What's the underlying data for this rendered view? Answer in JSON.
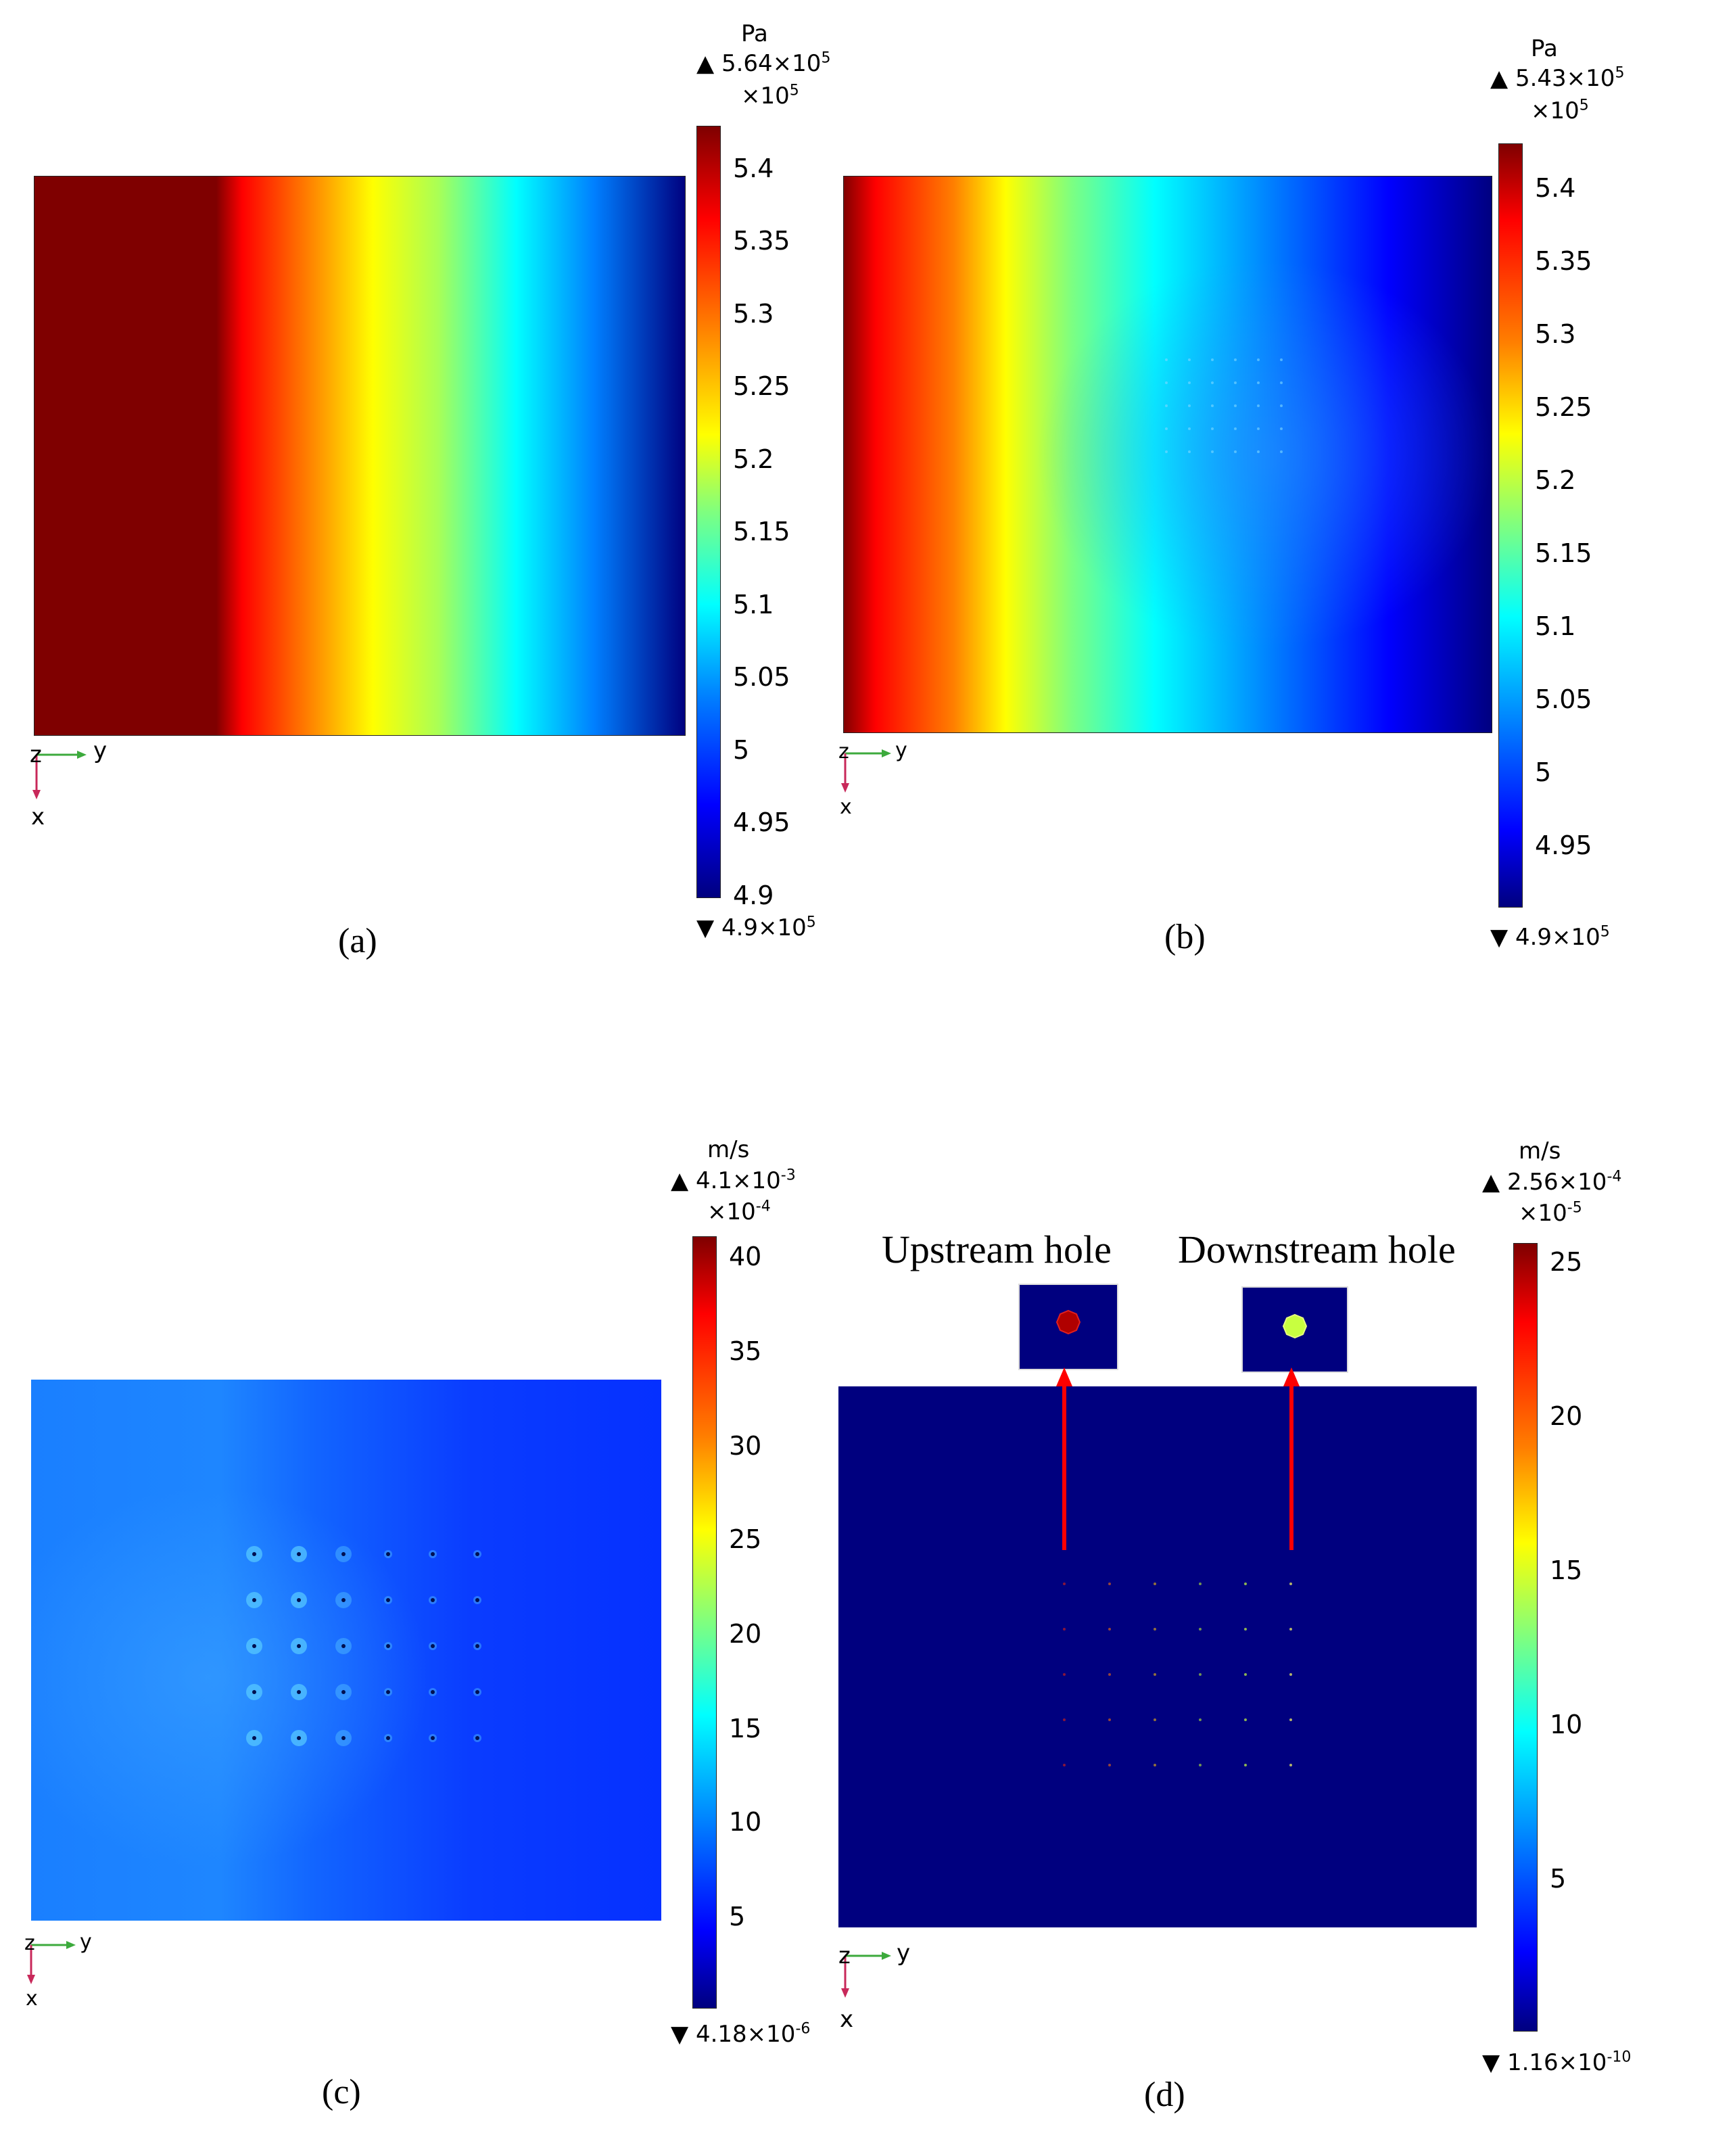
{
  "panels": {
    "a": {
      "caption": "(a)",
      "unit": "Pa",
      "max_label": "5.64×10",
      "max_exp": "5",
      "multiplier": "×10",
      "multiplier_exp": "5",
      "min_label": "4.9×10",
      "min_exp": "5",
      "ticks": [
        "5.4",
        "5.35",
        "5.3",
        "5.25",
        "5.2",
        "5.15",
        "5.1",
        "5.05",
        "5",
        "4.95",
        "4.9"
      ],
      "axis_y": "y",
      "axis_x": "x",
      "axis_z": "z"
    },
    "b": {
      "caption": "(b)",
      "unit": "Pa",
      "max_label": "5.43×10",
      "max_exp": "5",
      "multiplier": "×10",
      "multiplier_exp": "5",
      "min_label": "4.9×10",
      "min_exp": "5",
      "ticks": [
        "5.4",
        "5.35",
        "5.3",
        "5.25",
        "5.2",
        "5.15",
        "5.1",
        "5.05",
        "5",
        "4.95"
      ],
      "axis_y": "y",
      "axis_x": "x",
      "axis_z": "z"
    },
    "c": {
      "caption": "(c)",
      "unit": "m/s",
      "max_label": "4.1×10",
      "max_exp": "-3",
      "multiplier": "×10",
      "multiplier_exp": "-4",
      "min_label": "4.18×10",
      "min_exp": "-6",
      "ticks": [
        "40",
        "35",
        "30",
        "25",
        "20",
        "15",
        "10",
        "5"
      ],
      "axis_y": "y",
      "axis_x": "x",
      "axis_z": "z"
    },
    "d": {
      "caption": "(d)",
      "unit": "m/s",
      "max_label": "2.56×10",
      "max_exp": "-4",
      "multiplier": "×10",
      "multiplier_exp": "-5",
      "min_label": "1.16×10",
      "min_exp": "-10",
      "ticks": [
        "25",
        "20",
        "15",
        "10",
        "5"
      ],
      "annotation_upstream": "Upstream hole",
      "annotation_downstream": "Downstream hole",
      "axis_y": "y",
      "axis_x": "x",
      "axis_z": "z"
    }
  },
  "colors": {
    "jet": [
      "#00007f",
      "#0000ff",
      "#007fff",
      "#00ffff",
      "#7fff7f",
      "#ffff00",
      "#ff7f00",
      "#ff0000",
      "#7f0000"
    ],
    "arrow_red": "#ff0000",
    "axis_green": "#3caa3c",
    "axis_red": "#c8285a"
  }
}
